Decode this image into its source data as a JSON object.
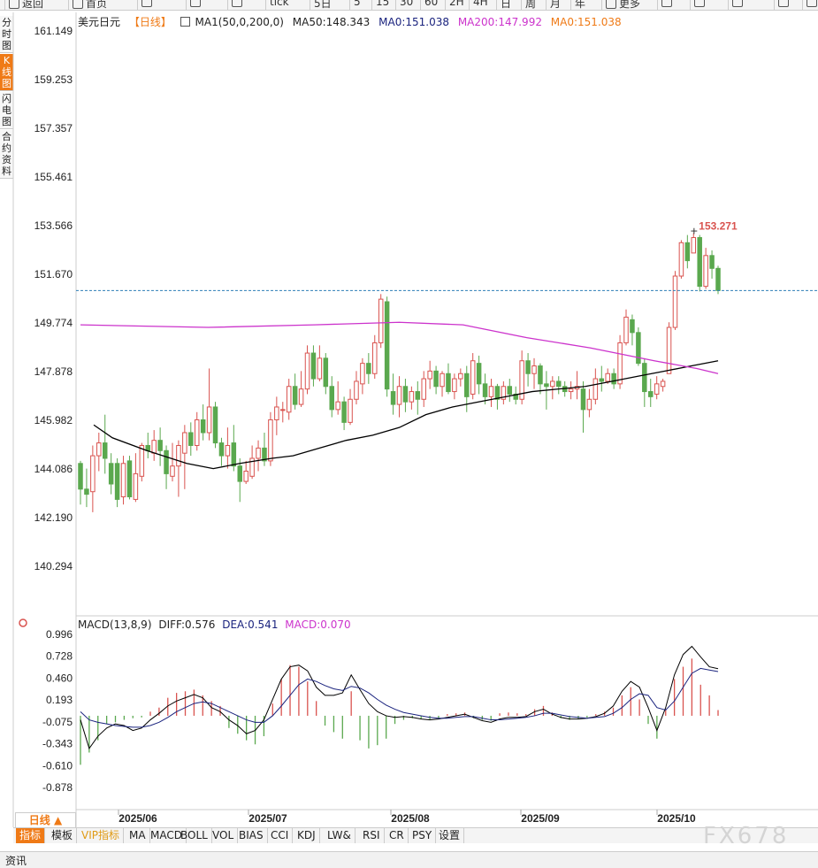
{
  "toolbar": {
    "items": [
      {
        "label": "返回",
        "icon": "back-icon"
      },
      {
        "label": "首页",
        "icon": "home-icon"
      },
      {
        "label": "",
        "icon": "refresh-icon"
      },
      {
        "label": "",
        "icon": "bar-chart-icon"
      },
      {
        "label": "",
        "icon": "candle-icon"
      },
      {
        "label": "tick"
      },
      {
        "label": "5日"
      },
      {
        "label": "5"
      },
      {
        "label": "15"
      },
      {
        "label": "30"
      },
      {
        "label": "60"
      },
      {
        "label": "2H"
      },
      {
        "label": "4H"
      },
      {
        "label": "日"
      },
      {
        "label": "周"
      },
      {
        "label": "月"
      },
      {
        "label": "年"
      },
      {
        "label": "更多",
        "icon": "menu-icon"
      },
      {
        "label": "",
        "icon": "formula-icon"
      },
      {
        "label": "",
        "icon": "zoom-out-icon"
      },
      {
        "label": "",
        "icon": "zoom-in-icon"
      },
      {
        "label": "",
        "icon": "draw-icon"
      },
      {
        "label": "",
        "icon": "expand-icon"
      }
    ]
  },
  "side_tabs": [
    "分时图",
    "K线图",
    "闪电图",
    "合约资料"
  ],
  "side_active": 1,
  "legend_main": {
    "symbol": "美元日元",
    "period": "【日线】",
    "ma_name": "MA1(50,0,200,0)",
    "ma50": "MA50:148.343",
    "ma0": "MA0:151.038",
    "ma200": "MA200:147.992",
    "ma0b": "MA0:151.038"
  },
  "legend_macd": {
    "name": "MACD(13,8,9)",
    "diff": "DIFF:0.576",
    "dea": "DEA:0.541",
    "macd": "MACD:0.070"
  },
  "colors": {
    "up": "#d9534f",
    "down": "#5aa84e",
    "ma50": "#000000",
    "ma200": "#cc33cc",
    "current_line": "#2e7fb8",
    "dea": "#1a237e",
    "highlight": "#ef7a16"
  },
  "chart_data": {
    "type": "candlestick",
    "price_axis_ticks": [
      "161.149",
      "159.253",
      "157.357",
      "155.461",
      "153.566",
      "151.670",
      "149.774",
      "147.878",
      "145.982",
      "144.086",
      "142.190",
      "140.294"
    ],
    "macd_axis_ticks": [
      "0.996",
      "0.728",
      "0.460",
      "0.193",
      "-0.075",
      "-0.343",
      "-0.610",
      "-0.878"
    ],
    "date_labels": [
      "2025/06",
      "2025/07",
      "2025/08",
      "2025/09",
      "2025/10"
    ],
    "price_range": [
      139.6,
      161.6
    ],
    "macd_range": [
      -1.0,
      1.05
    ],
    "high_label": "153.271",
    "current_price": 151.038,
    "candles": [
      [
        144.3,
        143.3,
        144.4,
        142.7
      ],
      [
        143.3,
        143.1,
        144.1,
        142.6
      ],
      [
        143.2,
        144.6,
        145.0,
        142.4
      ],
      [
        144.6,
        145.1,
        145.5,
        144.0
      ],
      [
        145.1,
        144.5,
        146.2,
        143.9
      ],
      [
        144.3,
        143.5,
        144.7,
        143.1
      ],
      [
        144.3,
        142.9,
        144.5,
        142.6
      ],
      [
        143.0,
        144.3,
        144.6,
        142.7
      ],
      [
        144.4,
        143.0,
        144.6,
        142.9
      ],
      [
        142.9,
        143.9,
        144.7,
        142.8
      ],
      [
        143.8,
        145.0,
        145.1,
        143.6
      ],
      [
        145.0,
        144.8,
        145.5,
        144.5
      ],
      [
        144.7,
        145.2,
        145.6,
        144.4
      ],
      [
        145.2,
        144.8,
        145.7,
        144.2
      ],
      [
        144.8,
        143.9,
        145.0,
        143.3
      ],
      [
        143.8,
        144.2,
        145.1,
        143.6
      ],
      [
        144.2,
        145.0,
        145.2,
        143.0
      ],
      [
        144.7,
        145.5,
        145.8,
        143.3
      ],
      [
        145.5,
        145.0,
        145.9,
        144.6
      ],
      [
        145.0,
        146.0,
        146.3,
        144.8
      ],
      [
        146.0,
        145.5,
        146.6,
        145.2
      ],
      [
        145.5,
        146.5,
        148.0,
        145.2
      ],
      [
        146.5,
        145.1,
        146.7,
        144.9
      ],
      [
        145.1,
        144.6,
        145.3,
        144.2
      ],
      [
        144.6,
        145.0,
        145.7,
        144.1
      ],
      [
        145.1,
        144.2,
        145.8,
        144.0
      ],
      [
        144.2,
        143.6,
        144.5,
        142.8
      ],
      [
        143.6,
        144.0,
        144.4,
        143.5
      ],
      [
        143.8,
        144.5,
        145.0,
        143.7
      ],
      [
        144.5,
        144.9,
        145.2,
        144.0
      ],
      [
        144.9,
        144.4,
        145.5,
        144.2
      ],
      [
        144.4,
        146.0,
        146.3,
        144.2
      ],
      [
        146.0,
        146.5,
        146.9,
        145.4
      ],
      [
        146.4,
        146.4,
        146.7,
        145.9
      ],
      [
        146.3,
        147.3,
        147.6,
        146.0
      ],
      [
        147.3,
        146.6,
        147.8,
        146.4
      ],
      [
        146.6,
        147.2,
        147.9,
        146.5
      ],
      [
        147.2,
        148.6,
        148.9,
        147.0
      ],
      [
        148.6,
        147.6,
        148.9,
        147.3
      ],
      [
        147.6,
        148.4,
        148.9,
        147.5
      ],
      [
        148.4,
        147.3,
        148.6,
        147.0
      ],
      [
        147.3,
        146.4,
        147.7,
        146.1
      ],
      [
        146.4,
        146.7,
        147.5,
        146.2
      ],
      [
        146.7,
        145.9,
        146.9,
        145.6
      ],
      [
        145.9,
        146.8,
        147.2,
        145.8
      ],
      [
        146.8,
        147.5,
        147.9,
        146.6
      ],
      [
        147.4,
        148.2,
        148.4,
        147.0
      ],
      [
        148.2,
        147.8,
        148.6,
        147.4
      ],
      [
        147.8,
        149.0,
        149.3,
        147.6
      ],
      [
        149.0,
        150.7,
        150.9,
        148.8
      ],
      [
        150.6,
        147.2,
        150.8,
        146.9
      ],
      [
        147.1,
        146.6,
        147.8,
        146.2
      ],
      [
        146.6,
        147.3,
        147.7,
        146.1
      ],
      [
        147.3,
        146.7,
        147.6,
        146.3
      ],
      [
        146.7,
        147.1,
        147.3,
        146.4
      ],
      [
        147.1,
        146.8,
        147.5,
        146.2
      ],
      [
        146.8,
        147.6,
        147.9,
        146.5
      ],
      [
        147.6,
        147.9,
        148.3,
        147.2
      ],
      [
        147.9,
        147.3,
        148.1,
        147.0
      ],
      [
        147.3,
        147.8,
        147.9,
        146.9
      ],
      [
        147.8,
        147.1,
        148.2,
        147.0
      ],
      [
        147.1,
        147.6,
        147.8,
        146.8
      ],
      [
        147.6,
        147.8,
        148.0,
        147.3
      ],
      [
        147.8,
        146.9,
        148.1,
        146.3
      ],
      [
        147.0,
        148.3,
        148.6,
        146.8
      ],
      [
        148.2,
        147.4,
        148.5,
        147.0
      ],
      [
        147.4,
        146.9,
        147.8,
        146.6
      ],
      [
        146.9,
        147.3,
        147.6,
        146.5
      ],
      [
        147.3,
        146.8,
        147.4,
        146.4
      ],
      [
        146.8,
        147.3,
        147.5,
        146.6
      ],
      [
        147.3,
        147.0,
        147.6,
        146.7
      ],
      [
        147.0,
        146.8,
        147.3,
        146.6
      ],
      [
        146.8,
        148.3,
        148.7,
        146.6
      ],
      [
        148.3,
        147.8,
        148.6,
        147.3
      ],
      [
        147.8,
        148.1,
        148.4,
        147.2
      ],
      [
        148.1,
        147.4,
        148.2,
        147.0
      ],
      [
        147.4,
        147.3,
        147.9,
        146.4
      ],
      [
        147.3,
        147.5,
        147.7,
        146.8
      ],
      [
        147.5,
        147.3,
        147.7,
        147.0
      ],
      [
        147.3,
        147.1,
        147.5,
        146.9
      ],
      [
        147.1,
        147.2,
        147.5,
        146.8
      ],
      [
        147.2,
        147.3,
        147.9,
        146.8
      ],
      [
        147.2,
        146.4,
        147.5,
        145.5
      ],
      [
        146.4,
        146.8,
        147.2,
        146.1
      ],
      [
        146.8,
        147.6,
        148.0,
        146.6
      ],
      [
        147.6,
        147.5,
        148.1,
        147.1
      ],
      [
        147.5,
        147.8,
        148.0,
        147.4
      ],
      [
        147.8,
        147.4,
        148.0,
        147.2
      ],
      [
        147.4,
        149.0,
        149.3,
        147.2
      ],
      [
        149.0,
        150.0,
        150.3,
        148.9
      ],
      [
        149.9,
        149.4,
        150.1,
        148.9
      ],
      [
        149.4,
        148.2,
        149.6,
        148.1
      ],
      [
        148.2,
        147.1,
        148.4,
        146.5
      ],
      [
        147.1,
        146.9,
        147.6,
        146.5
      ],
      [
        147.0,
        147.4,
        147.7,
        146.8
      ],
      [
        147.3,
        147.5,
        147.6,
        147.1
      ],
      [
        147.8,
        149.6,
        149.8,
        149.4
      ],
      [
        149.6,
        151.6,
        151.8,
        149.5
      ],
      [
        151.6,
        152.9,
        153.0,
        151.5
      ],
      [
        152.9,
        152.2,
        153.2,
        151.9
      ],
      [
        152.5,
        153.1,
        153.271,
        152.9
      ],
      [
        153.1,
        151.2,
        153.2,
        151.0
      ],
      [
        151.2,
        152.4,
        152.7,
        151.1
      ],
      [
        152.4,
        151.9,
        152.6,
        151.5
      ],
      [
        151.9,
        151.038,
        152.0,
        150.9
      ]
    ],
    "ma50": [
      [
        145.8,
        5
      ],
      [
        145.3,
        12
      ],
      [
        144.8,
        25
      ],
      [
        144.3,
        40
      ],
      [
        144.1,
        50
      ],
      [
        144.3,
        60
      ],
      [
        144.5,
        72
      ],
      [
        144.6,
        80
      ],
      [
        144.9,
        90
      ],
      [
        145.2,
        100
      ],
      [
        145.4,
        110
      ],
      [
        145.7,
        120
      ],
      [
        146.2,
        130
      ],
      [
        146.5,
        140
      ],
      [
        146.7,
        150
      ],
      [
        146.9,
        160
      ],
      [
        147.1,
        170
      ],
      [
        147.2,
        180
      ],
      [
        147.3,
        190
      ],
      [
        147.5,
        200
      ],
      [
        147.7,
        210
      ],
      [
        147.9,
        220
      ],
      [
        148.1,
        230
      ],
      [
        148.3,
        240
      ]
    ],
    "ma200": [
      [
        149.7,
        0
      ],
      [
        149.6,
        60
      ],
      [
        149.7,
        110
      ],
      [
        149.8,
        150
      ],
      [
        149.7,
        180
      ],
      [
        149.2,
        210
      ],
      [
        148.8,
        240
      ],
      [
        148.3,
        270
      ],
      [
        148.0,
        290
      ],
      [
        147.8,
        300
      ]
    ],
    "macd": {
      "diff": [
        -0.05,
        -0.4,
        -0.25,
        -0.15,
        -0.1,
        -0.12,
        -0.18,
        -0.15,
        -0.05,
        0.03,
        0.12,
        0.18,
        0.22,
        0.26,
        0.22,
        0.1,
        0.05,
        -0.05,
        -0.12,
        -0.22,
        -0.18,
        -0.05,
        0.2,
        0.45,
        0.6,
        0.62,
        0.55,
        0.35,
        0.25,
        0.25,
        0.28,
        0.5,
        0.32,
        0.15,
        0.05,
        0.0,
        -0.02,
        -0.01,
        -0.02,
        -0.04,
        -0.05,
        -0.04,
        -0.02,
        0.0,
        0.02,
        -0.02,
        -0.06,
        -0.08,
        -0.04,
        -0.02,
        -0.02,
        -0.01,
        0.05,
        0.08,
        0.02,
        -0.02,
        -0.04,
        -0.04,
        -0.03,
        -0.01,
        0.03,
        0.12,
        0.3,
        0.42,
        0.35,
        0.1,
        -0.18,
        0.1,
        0.5,
        0.75,
        0.85,
        0.72,
        0.6,
        0.576
      ],
      "dea": [
        0.05,
        -0.05,
        -0.08,
        -0.1,
        -0.12,
        -0.13,
        -0.14,
        -0.14,
        -0.12,
        -0.08,
        -0.02,
        0.05,
        0.1,
        0.15,
        0.17,
        0.15,
        0.1,
        0.05,
        0.0,
        -0.05,
        -0.08,
        -0.08,
        0.0,
        0.12,
        0.25,
        0.38,
        0.45,
        0.42,
        0.37,
        0.33,
        0.31,
        0.36,
        0.34,
        0.28,
        0.2,
        0.13,
        0.08,
        0.04,
        0.02,
        0.0,
        -0.02,
        -0.03,
        -0.03,
        -0.02,
        -0.01,
        -0.01,
        -0.03,
        -0.05,
        -0.05,
        -0.04,
        -0.03,
        -0.02,
        0.0,
        0.03,
        0.03,
        0.01,
        -0.01,
        -0.02,
        -0.03,
        -0.02,
        -0.01,
        0.03,
        0.1,
        0.2,
        0.27,
        0.25,
        0.1,
        0.07,
        0.18,
        0.35,
        0.52,
        0.58,
        0.56,
        0.541
      ],
      "hist": [
        -0.6,
        -0.45,
        -0.3,
        -0.1,
        -0.08,
        -0.05,
        -0.03,
        -0.02,
        0.05,
        0.1,
        0.22,
        0.28,
        0.3,
        0.32,
        0.25,
        0.18,
        0.12,
        -0.15,
        -0.22,
        -0.3,
        -0.35,
        -0.25,
        0.15,
        0.45,
        0.62,
        0.6,
        0.42,
        0.18,
        -0.12,
        -0.2,
        -0.28,
        0.3,
        -0.3,
        -0.4,
        -0.36,
        -0.28,
        -0.1,
        -0.05,
        -0.03,
        -0.04,
        -0.05,
        -0.03,
        0.02,
        0.03,
        0.04,
        -0.03,
        -0.05,
        -0.06,
        0.03,
        0.04,
        0.03,
        0.02,
        0.08,
        0.12,
        0.04,
        -0.03,
        -0.05,
        -0.04,
        -0.02,
        0.02,
        0.05,
        0.1,
        0.25,
        0.35,
        0.2,
        -0.1,
        -0.28,
        0.08,
        0.45,
        0.6,
        0.7,
        0.38,
        0.25,
        0.07
      ]
    }
  },
  "period_button": "日线 ▲",
  "bottom_tabs": [
    "指标",
    "模板",
    "VIP指标",
    "MA",
    "MACD",
    "BOLL",
    "VOL",
    "BIAS",
    "CCI",
    "KDJ",
    "LW&",
    "RSI",
    "CR",
    "PSY",
    "设置"
  ],
  "bottom_active": 0,
  "status": "资讯",
  "watermark": "FX678"
}
